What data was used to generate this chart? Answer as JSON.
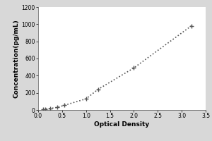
{
  "title": "",
  "xlabel": "Optical Density",
  "ylabel": "Concentration(pg/mL)",
  "xlim": [
    0,
    3.5
  ],
  "ylim": [
    0,
    1200
  ],
  "xticks": [
    0,
    0.5,
    1,
    1.5,
    2,
    2.5,
    3,
    3.5
  ],
  "yticks": [
    0,
    200,
    400,
    600,
    800,
    1000,
    1200
  ],
  "x_data": [
    0.1,
    0.15,
    0.25,
    0.4,
    0.55,
    1.0,
    1.25,
    2.0,
    3.2
  ],
  "y_data": [
    5,
    10,
    18,
    30,
    55,
    130,
    240,
    490,
    980
  ],
  "line_color": "#555555",
  "linestyle": "dotted",
  "linewidth": 1.2,
  "marker": "+",
  "marker_size": 4,
  "marker_edge_width": 1.0,
  "background_color": "#d8d8d8",
  "plot_bg": "#ffffff",
  "tick_font_size": 5.5,
  "label_font_size": 6.5,
  "ylabel_rotation": 90
}
